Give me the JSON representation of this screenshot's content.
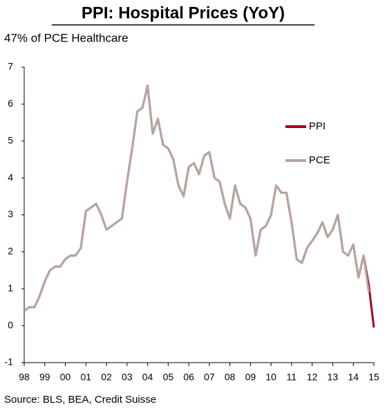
{
  "chart_data": {
    "type": "line",
    "title": "PPI: Hospital Prices (YoY)",
    "subtitle": "47% of PCE Healthcare",
    "source": "Source: BLS, BEA, Credit Suisse",
    "categories": [
      "98",
      null,
      null,
      null,
      "99",
      null,
      null,
      null,
      "00",
      null,
      null,
      null,
      "01",
      null,
      null,
      null,
      "02",
      null,
      null,
      null,
      "03",
      null,
      null,
      null,
      "04",
      null,
      null,
      null,
      "05",
      null,
      null,
      null,
      "06",
      null,
      null,
      null,
      "07",
      null,
      null,
      null,
      "08",
      null,
      null,
      null,
      "09",
      null,
      null,
      null,
      "10",
      null,
      null,
      null,
      "11",
      null,
      null,
      null,
      "12",
      null,
      null,
      null,
      "13",
      null,
      null,
      null,
      "14",
      null,
      null,
      null,
      "15"
    ],
    "series": [
      {
        "name": "PPI",
        "color": "#a50021",
        "values": [
          0.4,
          0.5,
          0.5,
          0.8,
          1.2,
          1.5,
          1.6,
          1.6,
          1.8,
          1.9,
          1.9,
          2.1,
          3.1,
          3.2,
          3.3,
          3.0,
          2.6,
          2.7,
          2.8,
          2.9,
          3.9,
          4.8,
          5.8,
          5.9,
          6.5,
          5.2,
          5.6,
          4.9,
          4.8,
          4.5,
          3.8,
          3.5,
          4.3,
          4.4,
          4.1,
          4.6,
          4.7,
          4.0,
          3.9,
          3.3,
          2.9,
          3.8,
          3.3,
          3.2,
          2.9,
          1.9,
          2.6,
          2.7,
          3.0,
          3.8,
          3.6,
          3.6,
          2.8,
          1.8,
          1.7,
          2.1,
          2.3,
          2.5,
          2.8,
          2.4,
          2.6,
          3.0,
          2.0,
          1.9,
          2.2,
          1.3,
          1.9,
          1.1,
          -0.05
        ]
      },
      {
        "name": "PCE",
        "color": "#b4a7a0",
        "values": [
          0.4,
          0.5,
          0.5,
          0.8,
          1.2,
          1.5,
          1.6,
          1.6,
          1.8,
          1.9,
          1.9,
          2.1,
          3.1,
          3.2,
          3.3,
          3.0,
          2.6,
          2.7,
          2.8,
          2.9,
          3.9,
          4.8,
          5.8,
          5.9,
          6.5,
          5.2,
          5.6,
          4.9,
          4.8,
          4.5,
          3.8,
          3.5,
          4.3,
          4.4,
          4.1,
          4.6,
          4.7,
          4.0,
          3.9,
          3.3,
          2.9,
          3.8,
          3.3,
          3.2,
          2.9,
          1.9,
          2.6,
          2.7,
          3.0,
          3.8,
          3.6,
          3.6,
          2.8,
          1.8,
          1.7,
          2.1,
          2.3,
          2.5,
          2.8,
          2.4,
          2.6,
          3.0,
          2.0,
          1.9,
          2.2,
          1.3,
          1.9,
          0.9,
          null
        ]
      }
    ],
    "ylim": [
      -1,
      7
    ],
    "yticks": [
      -1,
      0,
      1,
      2,
      3,
      4,
      5,
      6,
      7
    ],
    "legend": "right"
  }
}
